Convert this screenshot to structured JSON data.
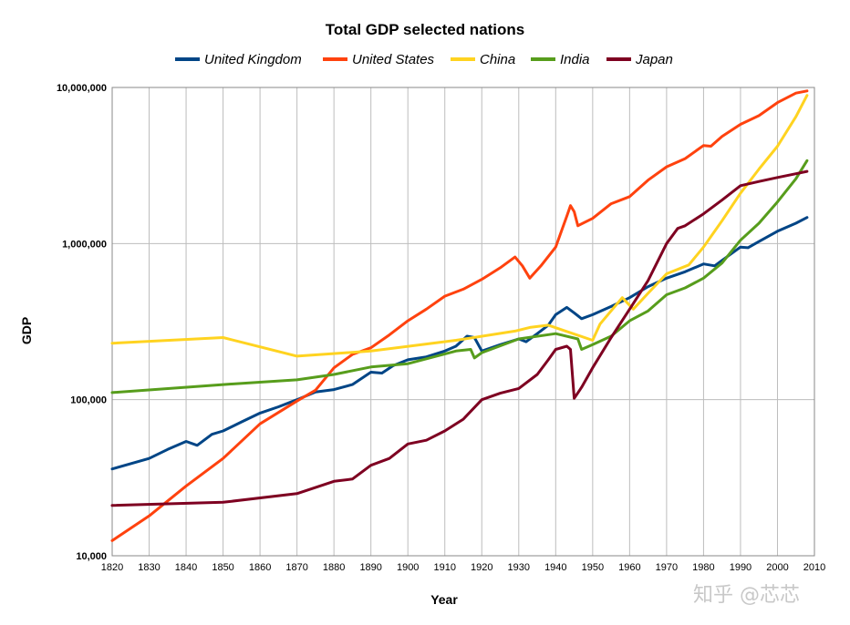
{
  "chart_data": {
    "type": "line",
    "title": "Total GDP selected nations",
    "xlabel": "Year",
    "ylabel": "GDP",
    "xlim": [
      1820,
      2010
    ],
    "x_ticks": [
      "1820",
      "1830",
      "1840",
      "1850",
      "1860",
      "1870",
      "1880",
      "1890",
      "1900",
      "1910",
      "1920",
      "1930",
      "1940",
      "1950",
      "1960",
      "1970",
      "1980",
      "1990",
      "2000",
      "2010"
    ],
    "ylim": [
      10000,
      10000000
    ],
    "y_scale": "log",
    "y_ticks": [
      "10,000",
      "100,000",
      "1,000,000",
      "10,000,000"
    ],
    "grid": true,
    "legend_position": "top",
    "series": [
      {
        "name": "United Kingdom",
        "color": "#004586",
        "points": [
          [
            1820,
            36000
          ],
          [
            1830,
            42000
          ],
          [
            1835,
            48000
          ],
          [
            1840,
            54000
          ],
          [
            1843,
            51000
          ],
          [
            1847,
            60000
          ],
          [
            1850,
            63000
          ],
          [
            1855,
            72000
          ],
          [
            1860,
            82000
          ],
          [
            1865,
            90000
          ],
          [
            1870,
            100000
          ],
          [
            1875,
            112000
          ],
          [
            1880,
            116000
          ],
          [
            1885,
            125000
          ],
          [
            1890,
            150000
          ],
          [
            1893,
            148000
          ],
          [
            1896,
            165000
          ],
          [
            1900,
            180000
          ],
          [
            1905,
            188000
          ],
          [
            1910,
            205000
          ],
          [
            1913,
            220000
          ],
          [
            1916,
            255000
          ],
          [
            1918,
            250000
          ],
          [
            1920,
            205000
          ],
          [
            1925,
            225000
          ],
          [
            1930,
            245000
          ],
          [
            1932,
            235000
          ],
          [
            1935,
            265000
          ],
          [
            1938,
            300000
          ],
          [
            1940,
            350000
          ],
          [
            1943,
            390000
          ],
          [
            1945,
            360000
          ],
          [
            1947,
            330000
          ],
          [
            1950,
            350000
          ],
          [
            1955,
            395000
          ],
          [
            1960,
            450000
          ],
          [
            1965,
            530000
          ],
          [
            1970,
            600000
          ],
          [
            1975,
            660000
          ],
          [
            1980,
            740000
          ],
          [
            1983,
            720000
          ],
          [
            1985,
            780000
          ],
          [
            1990,
            950000
          ],
          [
            1992,
            940000
          ],
          [
            1995,
            1030000
          ],
          [
            2000,
            1200000
          ],
          [
            2005,
            1350000
          ],
          [
            2008,
            1470000
          ]
        ]
      },
      {
        "name": "United States",
        "color": "#ff420e",
        "points": [
          [
            1820,
            12500
          ],
          [
            1830,
            18000
          ],
          [
            1840,
            28000
          ],
          [
            1850,
            42000
          ],
          [
            1860,
            70000
          ],
          [
            1870,
            98000
          ],
          [
            1875,
            115000
          ],
          [
            1880,
            160000
          ],
          [
            1885,
            195000
          ],
          [
            1890,
            215000
          ],
          [
            1895,
            260000
          ],
          [
            1900,
            320000
          ],
          [
            1905,
            380000
          ],
          [
            1910,
            460000
          ],
          [
            1915,
            510000
          ],
          [
            1920,
            590000
          ],
          [
            1925,
            700000
          ],
          [
            1929,
            820000
          ],
          [
            1931,
            720000
          ],
          [
            1933,
            600000
          ],
          [
            1936,
            720000
          ],
          [
            1940,
            950000
          ],
          [
            1943,
            1500000
          ],
          [
            1944,
            1750000
          ],
          [
            1945,
            1600000
          ],
          [
            1946,
            1300000
          ],
          [
            1950,
            1450000
          ],
          [
            1955,
            1800000
          ],
          [
            1960,
            2000000
          ],
          [
            1965,
            2550000
          ],
          [
            1970,
            3100000
          ],
          [
            1975,
            3500000
          ],
          [
            1980,
            4250000
          ],
          [
            1982,
            4200000
          ],
          [
            1985,
            4850000
          ],
          [
            1990,
            5800000
          ],
          [
            1995,
            6600000
          ],
          [
            2000,
            8000000
          ],
          [
            2005,
            9200000
          ],
          [
            2008,
            9500000
          ]
        ]
      },
      {
        "name": "China",
        "color": "#ffd320",
        "points": [
          [
            1820,
            230000
          ],
          [
            1850,
            250000
          ],
          [
            1870,
            190000
          ],
          [
            1890,
            205000
          ],
          [
            1913,
            240000
          ],
          [
            1929,
            275000
          ],
          [
            1933,
            290000
          ],
          [
            1938,
            300000
          ],
          [
            1950,
            240000
          ],
          [
            1952,
            305000
          ],
          [
            1958,
            450000
          ],
          [
            1961,
            380000
          ],
          [
            1965,
            480000
          ],
          [
            1970,
            640000
          ],
          [
            1976,
            730000
          ],
          [
            1980,
            950000
          ],
          [
            1985,
            1400000
          ],
          [
            1990,
            2100000
          ],
          [
            1995,
            3000000
          ],
          [
            2000,
            4200000
          ],
          [
            2005,
            6500000
          ],
          [
            2008,
            8900000
          ]
        ]
      },
      {
        "name": "India",
        "color": "#579d1c",
        "points": [
          [
            1820,
            111000
          ],
          [
            1850,
            125000
          ],
          [
            1870,
            134000
          ],
          [
            1880,
            145000
          ],
          [
            1890,
            162000
          ],
          [
            1900,
            170000
          ],
          [
            1913,
            205000
          ],
          [
            1917,
            210000
          ],
          [
            1918,
            185000
          ],
          [
            1920,
            200000
          ],
          [
            1930,
            245000
          ],
          [
            1940,
            265000
          ],
          [
            1946,
            245000
          ],
          [
            1947,
            210000
          ],
          [
            1950,
            225000
          ],
          [
            1955,
            255000
          ],
          [
            1960,
            320000
          ],
          [
            1965,
            370000
          ],
          [
            1970,
            470000
          ],
          [
            1975,
            520000
          ],
          [
            1980,
            600000
          ],
          [
            1985,
            750000
          ],
          [
            1990,
            1050000
          ],
          [
            1995,
            1350000
          ],
          [
            2000,
            1850000
          ],
          [
            2005,
            2600000
          ],
          [
            2008,
            3400000
          ]
        ]
      },
      {
        "name": "Japan",
        "color": "#7e0021",
        "points": [
          [
            1820,
            21000
          ],
          [
            1850,
            22000
          ],
          [
            1870,
            25000
          ],
          [
            1880,
            30000
          ],
          [
            1885,
            31000
          ],
          [
            1890,
            38000
          ],
          [
            1895,
            42000
          ],
          [
            1900,
            52000
          ],
          [
            1905,
            55000
          ],
          [
            1910,
            63000
          ],
          [
            1915,
            75000
          ],
          [
            1920,
            100000
          ],
          [
            1925,
            110000
          ],
          [
            1930,
            118000
          ],
          [
            1935,
            145000
          ],
          [
            1938,
            180000
          ],
          [
            1940,
            210000
          ],
          [
            1943,
            220000
          ],
          [
            1944,
            210000
          ],
          [
            1945,
            102000
          ],
          [
            1947,
            120000
          ],
          [
            1950,
            160000
          ],
          [
            1955,
            250000
          ],
          [
            1960,
            380000
          ],
          [
            1965,
            580000
          ],
          [
            1970,
            1000000
          ],
          [
            1973,
            1250000
          ],
          [
            1975,
            1300000
          ],
          [
            1980,
            1550000
          ],
          [
            1985,
            1900000
          ],
          [
            1990,
            2350000
          ],
          [
            1995,
            2500000
          ],
          [
            2000,
            2650000
          ],
          [
            2005,
            2800000
          ],
          [
            2008,
            2900000
          ]
        ]
      }
    ]
  },
  "watermark": "知乎 @芯芯"
}
